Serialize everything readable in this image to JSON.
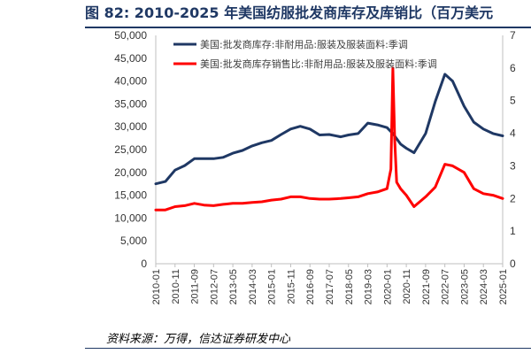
{
  "figure": {
    "title": "图 82:  2010-2025 年美国纺服批发商库存及库销比（百万美元",
    "source": "资料来源：万得，信达证券研发中心"
  },
  "chart_data": {
    "type": "line",
    "x_ticks": [
      "2010-01",
      "2010-11",
      "2011-09",
      "2012-07",
      "2013-05",
      "2014-03",
      "2015-01",
      "2015-11",
      "2016-09",
      "2017-07",
      "2018-05",
      "2019-03",
      "2020-01",
      "2020-11",
      "2021-09",
      "2022-07",
      "2023-05",
      "2024-03",
      "2025-01"
    ],
    "y_left": {
      "lim": [
        0,
        50000
      ],
      "ticks": [
        0,
        5000,
        10000,
        15000,
        20000,
        25000,
        30000,
        35000,
        40000,
        45000,
        50000
      ],
      "tick_labels": [
        "0",
        "5,000",
        "10,000",
        "15,000",
        "20,000",
        "25,000",
        "30,000",
        "35,000",
        "40,000",
        "45,000",
        "50,000"
      ]
    },
    "y_right": {
      "lim": [
        0,
        7
      ],
      "ticks": [
        0,
        1,
        2,
        3,
        4,
        5,
        6,
        7
      ],
      "tick_labels": [
        "0",
        "1",
        "2",
        "3",
        "4",
        "5",
        "6",
        "7"
      ]
    },
    "grid": false,
    "legend_position": "top-left",
    "series": [
      {
        "name": "美国:批发商库存:非耐用品:服装及服装面料:季调",
        "axis": "left",
        "color": "#1f3864",
        "points": [
          [
            "2010-01",
            17500
          ],
          [
            "2010-06",
            18000
          ],
          [
            "2010-11",
            20500
          ],
          [
            "2011-04",
            21500
          ],
          [
            "2011-09",
            23000
          ],
          [
            "2012-02",
            23000
          ],
          [
            "2012-07",
            23000
          ],
          [
            "2012-12",
            23300
          ],
          [
            "2013-05",
            24200
          ],
          [
            "2013-10",
            24800
          ],
          [
            "2014-03",
            25800
          ],
          [
            "2014-08",
            26500
          ],
          [
            "2015-01",
            27000
          ],
          [
            "2015-06",
            28300
          ],
          [
            "2015-11",
            29500
          ],
          [
            "2016-04",
            30100
          ],
          [
            "2016-09",
            29500
          ],
          [
            "2017-02",
            28200
          ],
          [
            "2017-07",
            28300
          ],
          [
            "2018-01",
            27800
          ],
          [
            "2018-05",
            28200
          ],
          [
            "2018-10",
            28500
          ],
          [
            "2019-03",
            30800
          ],
          [
            "2019-08",
            30400
          ],
          [
            "2020-01",
            29800
          ],
          [
            "2020-04",
            28500
          ],
          [
            "2020-08",
            26200
          ],
          [
            "2020-11",
            25300
          ],
          [
            "2021-03",
            24300
          ],
          [
            "2021-09",
            28500
          ],
          [
            "2022-02",
            35500
          ],
          [
            "2022-07",
            41500
          ],
          [
            "2022-11",
            40000
          ],
          [
            "2023-05",
            34500
          ],
          [
            "2023-10",
            31000
          ],
          [
            "2024-03",
            29500
          ],
          [
            "2024-08",
            28500
          ],
          [
            "2025-01",
            28000
          ]
        ]
      },
      {
        "name": "美国:批发商库存销售比:非耐用品:服装及服装面料:季调",
        "axis": "right",
        "color": "#ff0000",
        "points": [
          [
            "2010-01",
            1.65
          ],
          [
            "2010-06",
            1.65
          ],
          [
            "2010-11",
            1.75
          ],
          [
            "2011-04",
            1.78
          ],
          [
            "2011-09",
            1.85
          ],
          [
            "2012-02",
            1.8
          ],
          [
            "2012-07",
            1.78
          ],
          [
            "2012-12",
            1.82
          ],
          [
            "2013-05",
            1.85
          ],
          [
            "2013-10",
            1.85
          ],
          [
            "2014-03",
            1.88
          ],
          [
            "2014-08",
            1.9
          ],
          [
            "2015-01",
            1.95
          ],
          [
            "2015-06",
            1.98
          ],
          [
            "2015-11",
            2.05
          ],
          [
            "2016-04",
            2.05
          ],
          [
            "2016-09",
            2.0
          ],
          [
            "2017-02",
            1.98
          ],
          [
            "2017-07",
            1.98
          ],
          [
            "2018-01",
            2.0
          ],
          [
            "2018-05",
            2.02
          ],
          [
            "2018-10",
            2.05
          ],
          [
            "2019-03",
            2.15
          ],
          [
            "2019-08",
            2.2
          ],
          [
            "2020-01",
            2.3
          ],
          [
            "2020-03",
            2.9
          ],
          [
            "2020-04",
            6.0
          ],
          [
            "2020-05",
            3.8
          ],
          [
            "2020-06",
            2.5
          ],
          [
            "2020-08",
            2.3
          ],
          [
            "2020-11",
            2.1
          ],
          [
            "2021-03",
            1.75
          ],
          [
            "2021-09",
            2.05
          ],
          [
            "2022-02",
            2.35
          ],
          [
            "2022-07",
            3.05
          ],
          [
            "2022-11",
            3.0
          ],
          [
            "2023-05",
            2.8
          ],
          [
            "2023-10",
            2.3
          ],
          [
            "2024-03",
            2.15
          ],
          [
            "2024-08",
            2.1
          ],
          [
            "2025-01",
            2.0
          ]
        ]
      }
    ]
  }
}
